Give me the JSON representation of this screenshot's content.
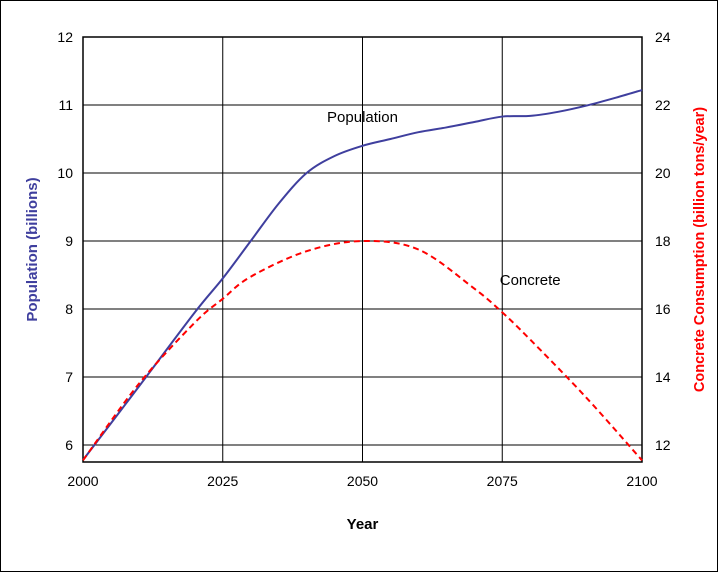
{
  "chart_data": {
    "type": "line",
    "xlabel": "Year",
    "ylabel_left": "Population (billions)",
    "ylabel_right": "Concrete Consumption (billion tons/year)",
    "xlim": [
      2000,
      2100
    ],
    "ylim_left": [
      5.75,
      12
    ],
    "ylim_right": [
      11.5,
      24
    ],
    "x_ticks": [
      2000,
      2025,
      2050,
      2075,
      2100
    ],
    "y_ticks_left": [
      6,
      7,
      8,
      9,
      10,
      11,
      12
    ],
    "y_ticks_right": [
      12,
      14,
      16,
      18,
      20,
      22,
      24
    ],
    "grid": true,
    "colors": {
      "population": "#3f3f9e",
      "concrete": "#ff0000",
      "left_axis_label": "#3f3f9e",
      "right_axis_label": "#ff0000"
    },
    "series": [
      {
        "name": "Population",
        "axis": "left",
        "style": "solid",
        "x": [
          2000,
          2010,
          2020,
          2025,
          2030,
          2035,
          2040,
          2045,
          2050,
          2055,
          2060,
          2065,
          2070,
          2075,
          2080,
          2085,
          2090,
          2095,
          2100
        ],
        "y": [
          5.78,
          6.86,
          7.95,
          8.45,
          9.0,
          9.55,
          10.0,
          10.25,
          10.4,
          10.5,
          10.6,
          10.67,
          10.75,
          10.83,
          10.84,
          10.9,
          10.99,
          11.1,
          11.22
        ]
      },
      {
        "name": "Concrete",
        "axis": "right",
        "style": "dashed",
        "x": [
          2000,
          2010,
          2020,
          2025,
          2030,
          2040,
          2050,
          2060,
          2070,
          2075,
          2080,
          2090,
          2100
        ],
        "y": [
          11.55,
          13.8,
          15.6,
          16.3,
          16.95,
          17.7,
          18.0,
          17.75,
          16.6,
          15.9,
          15.1,
          13.4,
          11.55
        ]
      }
    ],
    "annotations": [
      {
        "text": "Population",
        "x": 2050,
        "y": 10.75,
        "axis": "left"
      },
      {
        "text": "Concrete",
        "x": 2080,
        "y": 16.7,
        "axis": "right"
      }
    ]
  }
}
